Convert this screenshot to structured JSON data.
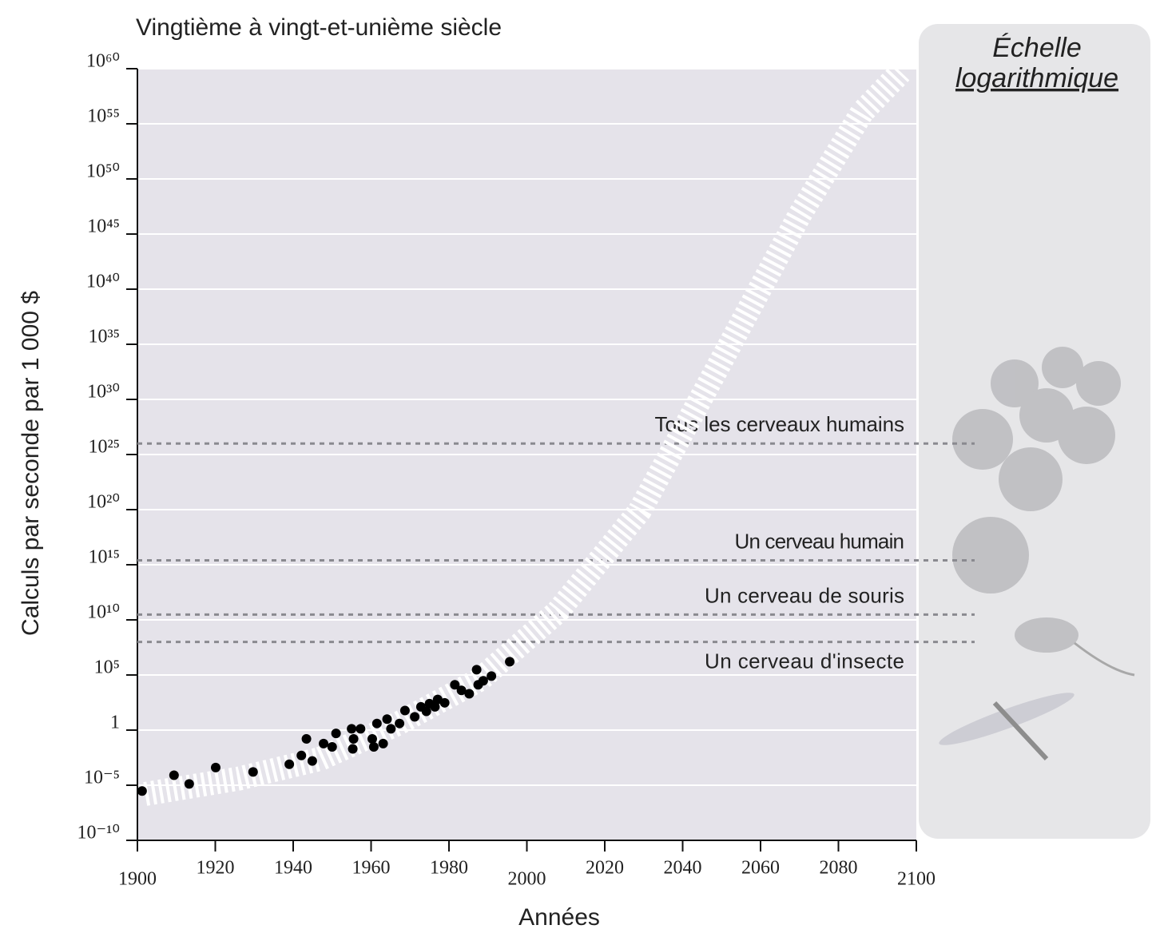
{
  "chart_data": {
    "type": "scatter",
    "title": "Vingtième à vingt-et-unième siècle",
    "x_label": "Années",
    "y_label": "Calculs par seconde par 1 000 $",
    "panel_title": [
      "Échelle",
      "logarithmique"
    ],
    "log_y": true,
    "grid": true,
    "xlim": [
      1900,
      2100
    ],
    "xticks": [
      1900,
      1920,
      1940,
      1960,
      1980,
      2000,
      2020,
      2040,
      2060,
      2080,
      2100
    ],
    "ylim": [
      1e-10,
      1e+60
    ],
    "yticks": [
      {
        "value": 1e-10,
        "label": "10⁻¹⁰"
      },
      {
        "value": 1e-05,
        "label": "10⁻⁵"
      },
      1,
      {
        "value": 100000.0,
        "label": "10⁵"
      },
      {
        "value": 10000000000.0,
        "label": "10¹⁰"
      },
      {
        "value": 1000000000000000.0,
        "label": "10¹⁵"
      },
      {
        "value": 1e+20,
        "label": "10²⁰"
      },
      {
        "value": 1e+25,
        "label": "10²⁵"
      },
      {
        "value": 1e+30,
        "label": "10³⁰"
      },
      {
        "value": 1e+35,
        "label": "10³⁵"
      },
      {
        "value": 1e+40,
        "label": "10⁴⁰"
      },
      {
        "value": 1e+45,
        "label": "10⁴⁵"
      },
      {
        "value": 1e+50,
        "label": "10⁵⁰"
      },
      {
        "value": 1e+55,
        "label": "10⁵⁵"
      },
      {
        "value": 1e+60,
        "label": "10⁶⁰"
      }
    ],
    "points": {
      "color": "#000000",
      "x": [
        1901.2,
        1909.4,
        1913.3,
        1920.1,
        1929.7,
        1939,
        1942.1,
        1943.4,
        1944.9,
        1947.8,
        1950,
        1951,
        1955,
        1955.5,
        1955.3,
        1957.3,
        1960.3,
        1960.7,
        1961.5,
        1963.1,
        1964.1,
        1965.1,
        1967.3,
        1968.7,
        1971.2,
        1972.8,
        1974.2,
        1975,
        1976.4,
        1977.1,
        1978.9,
        1981.5,
        1983.2,
        1985.2,
        1987.1,
        1987.5,
        1988.8,
        1990.9,
        1995.6
      ],
      "values": [
        3e-06,
        8e-05,
        1.3e-05,
        0.0004,
        0.00016,
        0.0008,
        0.005,
        0.16,
        0.0016,
        0.06,
        0.03,
        0.5,
        1.3,
        0.16,
        0.02,
        1.3,
        0.16,
        0.03,
        4,
        0.06,
        10,
        1.3,
        4,
        60,
        16,
        130,
        50,
        250,
        130,
        600,
        300,
        13000,
        4000,
        2000,
        300000,
        13000,
        30000,
        80000,
        1600000
      ]
    },
    "trend": {
      "color": "#ffffff",
      "x": [
        1902,
        1926,
        1947,
        1967,
        1988,
        2008,
        2029,
        2049,
        2070,
        2086,
        2096
      ],
      "values": [
        1.6e-06,
        4e-05,
        0.0025,
        4,
        40000,
        60000000000.0,
        8e+19,
        8e+32,
        5e+46,
        1e+56,
        5e+59
      ]
    },
    "references": [
      {
        "label": "Tous les cerveaux humains",
        "value": 1e+26
      },
      {
        "label": "Un cerveau humain",
        "value": 2500000000000000.0
      },
      {
        "label": "Un cerveau de souris",
        "value": 30000000000.0
      },
      {
        "label": "Un cerveau d'insecte",
        "value": 100000000.0
      }
    ]
  }
}
